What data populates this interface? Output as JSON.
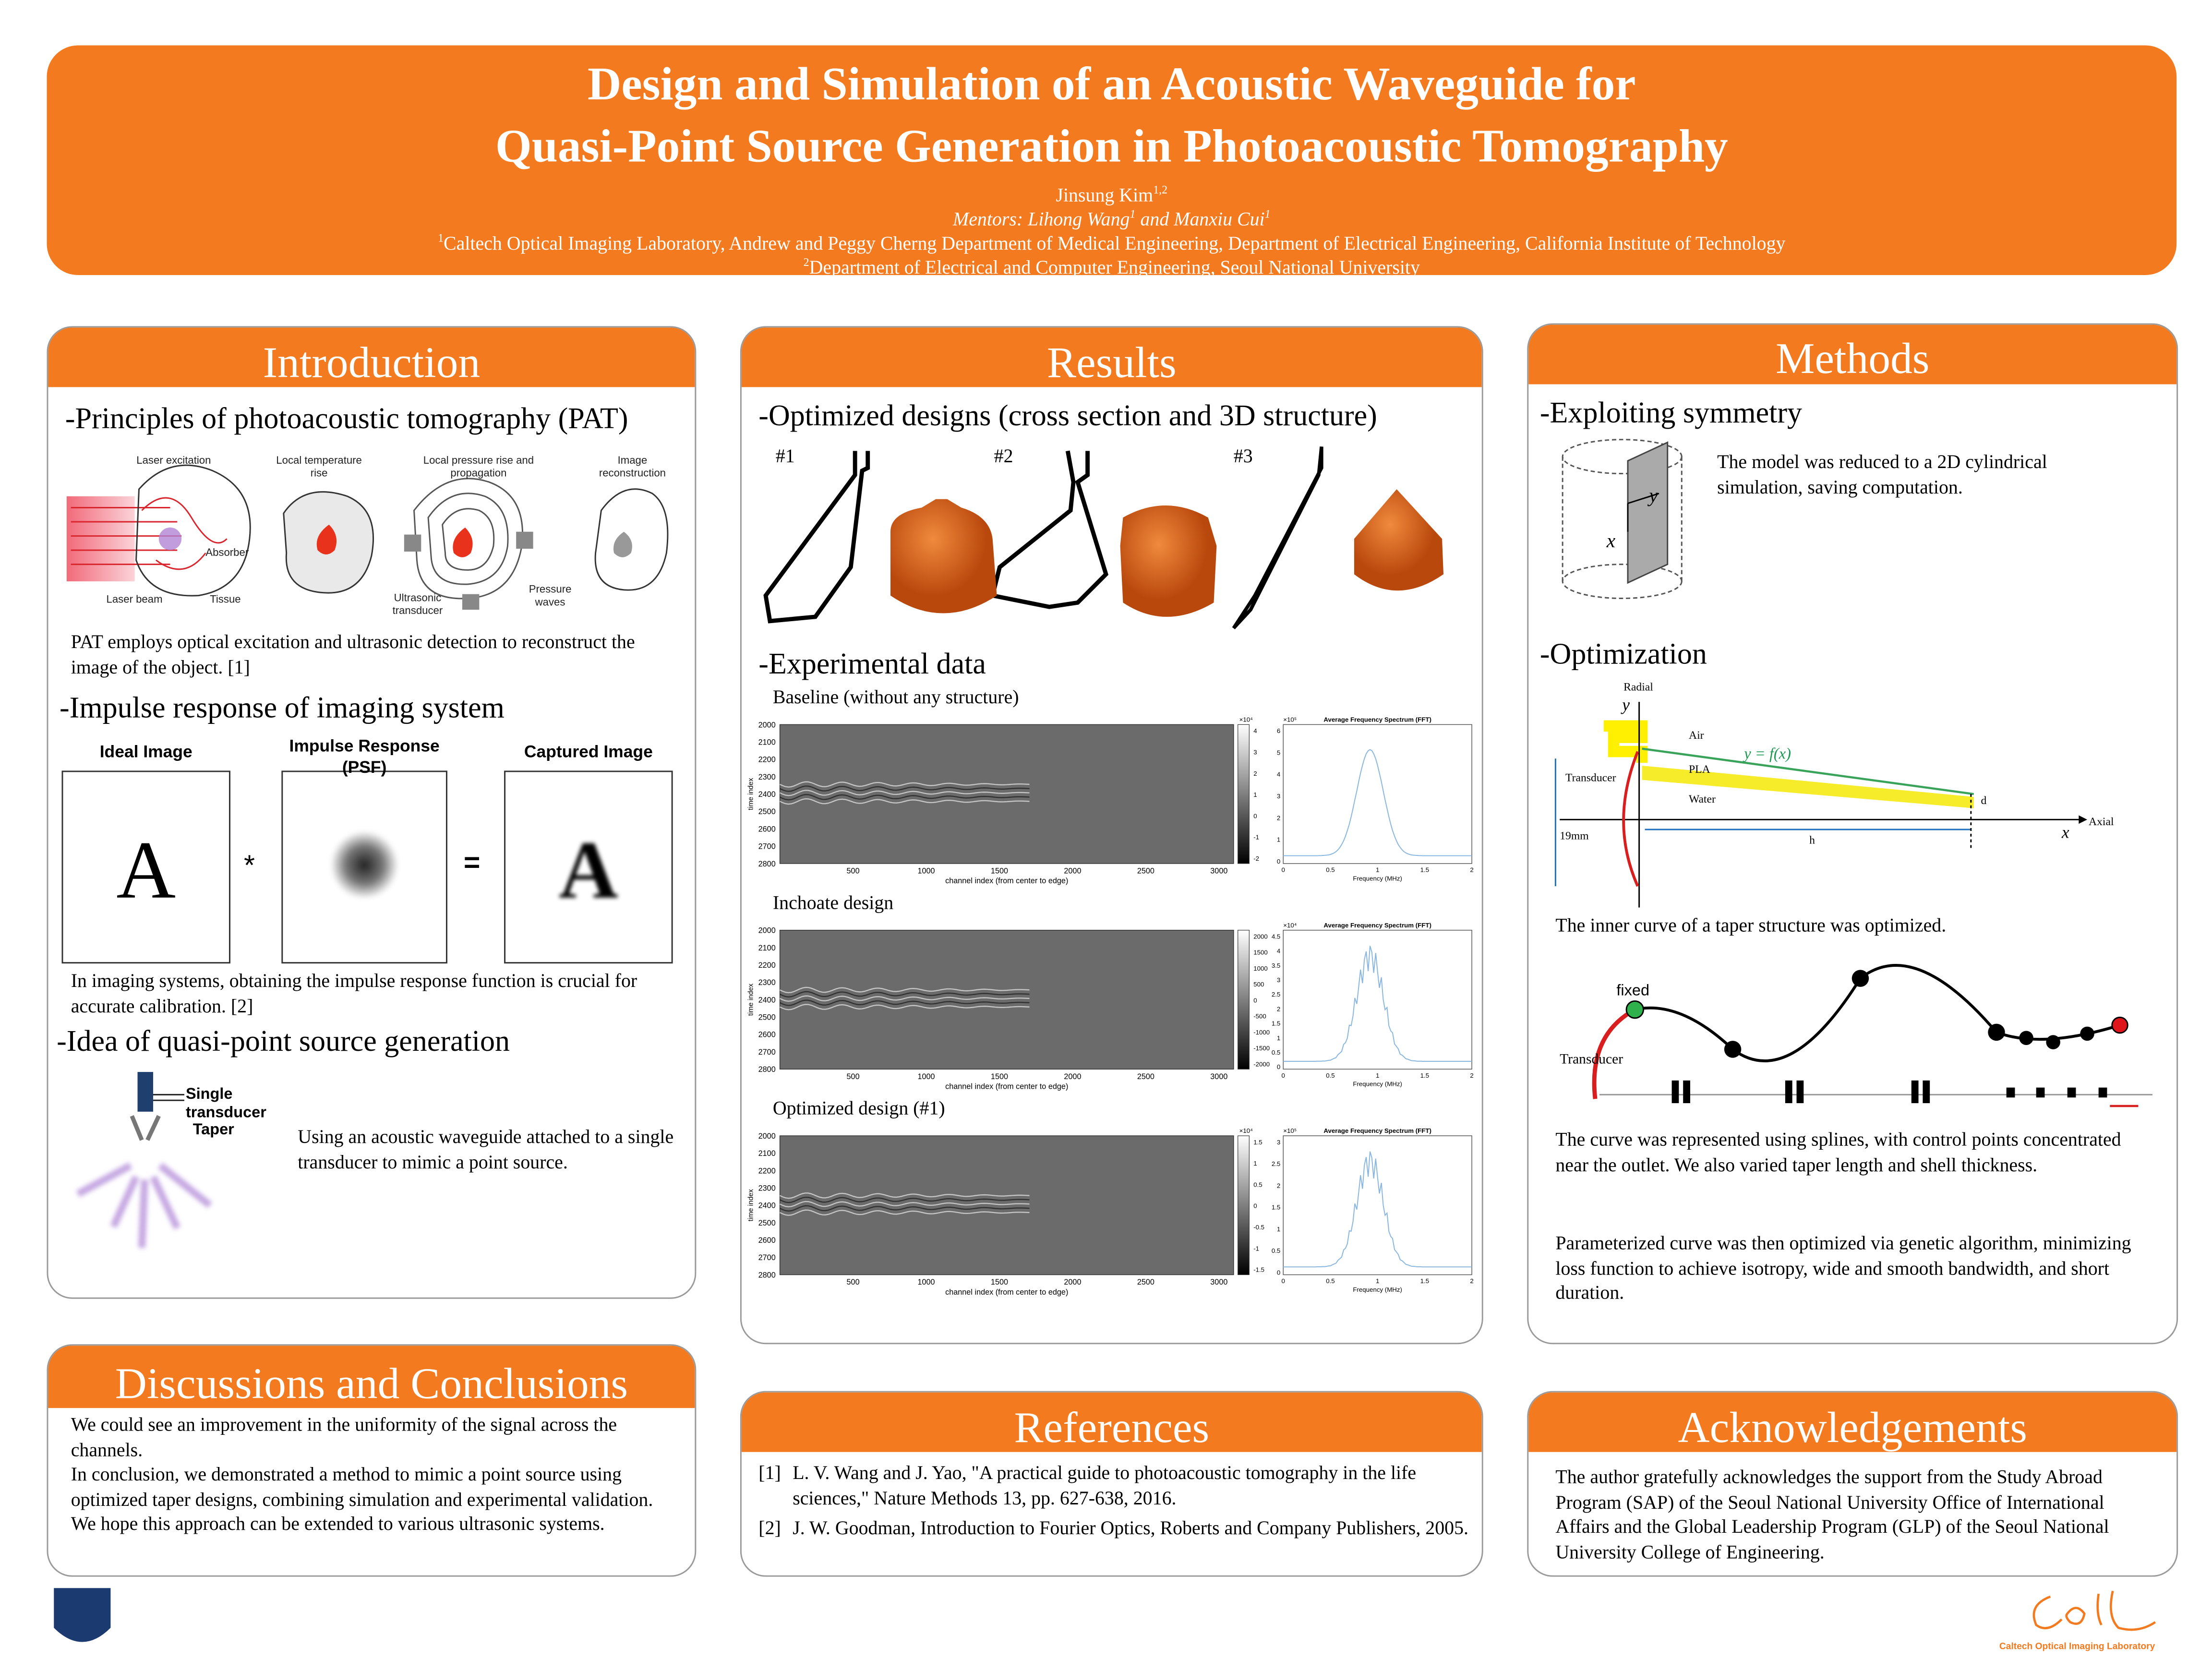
{
  "header": {
    "title_line1": "Design and Simulation of an Acoustic Waveguide for",
    "title_line2": "Quasi-Point Source Generation in Photoacoustic Tomography",
    "author": "Jinsung Kim",
    "author_sup": "1,2",
    "mentors_1": "Mentors: Lihong Wang",
    "mentors_1_sup": "1",
    "mentors_2": " and Manxiu Cui",
    "mentors_2_sup": "1",
    "affiliation_1_sup": "1",
    "affiliation_1": "Caltech Optical Imaging Laboratory, Andrew and Peggy Cherng Department of Medical Engineering, Department of Electrical Engineering, California Institute of Technology",
    "affiliation_2_sup": "2",
    "affiliation_2": "Department of Electrical and Computer Engineering, Seoul National University"
  },
  "introduction": {
    "heading": "Introduction",
    "pat": {
      "heading": "-Principles of photoacoustic tomography (PAT)",
      "figure": {
        "steps": [
          "Laser excitation",
          "Local temperature rise",
          "Local pressure rise and propagation",
          "Image reconstruction"
        ],
        "absorber": "Absorber",
        "laser_beam": "Laser beam",
        "tissue": "Tissue",
        "transducer": "Ultrasonic transducer",
        "pressure_waves": "Pressure waves"
      },
      "text": "PAT employs optical excitation and ultrasonic detection to reconstruct the image of the object. [1]"
    },
    "impulse": {
      "heading": "-Impulse response of imaging system",
      "figure": {
        "ideal": "Ideal Image",
        "psf": "Impulse Response (PSF)",
        "captured": "Captured Image",
        "glyph": "A",
        "convolve": "*",
        "equals": "="
      },
      "text": "In imaging systems, obtaining the impulse response function is crucial for accurate calibration. [2]"
    },
    "quasi_point": {
      "heading": "-Idea of quasi-point source generation",
      "figure": {
        "single_transducer": "Single transducer",
        "taper": "Taper"
      },
      "text": "Using an acoustic waveguide attached to a single transducer to mimic a point source."
    }
  },
  "results": {
    "heading": "Results",
    "designs": {
      "heading": "-Optimized designs (cross section and 3D structure)",
      "labels": [
        "#1",
        "#2",
        "#3"
      ]
    },
    "experimental": {
      "heading": "-Experimental data",
      "time_axis_label": "time index",
      "channel_axis_label": "channel index (from center to edge)",
      "time_ticks": [
        2000,
        2100,
        2200,
        2300,
        2400,
        2500,
        2600,
        2700,
        2800
      ],
      "channel_lim": [
        0,
        3100
      ],
      "channel_ticks": [
        500,
        1000,
        1500,
        2000,
        2500,
        3000
      ],
      "spectrum_title": "Average Frequency Spectrum (FFT)",
      "frequency_axis_label": "Frequency (MHz)",
      "frequency_ticks": [
        0,
        0.5,
        1,
        1.5,
        2
      ],
      "plots": [
        {
          "label": "Baseline (without any structure)",
          "colorbar_scale": "×10⁴",
          "colorbar_ticks": [
            4,
            3,
            2,
            1,
            0,
            -1,
            -2
          ],
          "spectrum_scale": "×10⁵",
          "spectrum_ticks": [
            0,
            1,
            2,
            3,
            4,
            5,
            6
          ]
        },
        {
          "label": "Inchoate design",
          "colorbar_ticks": [
            2000,
            1500,
            1000,
            500,
            0,
            -500,
            -1000,
            -1500,
            -2000
          ],
          "spectrum_scale": "×10⁴",
          "spectrum_ticks": [
            0,
            0.5,
            1,
            1.5,
            2,
            2.5,
            3,
            3.5,
            4,
            4.5
          ]
        },
        {
          "label": "Optimized design (#1)",
          "colorbar_scale": "×10⁴",
          "colorbar_ticks": [
            1.5,
            1,
            0.5,
            0,
            -0.5,
            -1,
            -1.5
          ],
          "spectrum_scale": "×10⁵",
          "spectrum_ticks": [
            0,
            0.5,
            1,
            1.5,
            2,
            2.5,
            3
          ]
        }
      ]
    }
  },
  "methods": {
    "heading": "Methods",
    "symmetry": {
      "heading": "-Exploiting symmetry",
      "axis_x": "x",
      "axis_y": "y",
      "text": "The model was reduced to a 2D cylindrical simulation, saving computation."
    },
    "optimization": {
      "heading": "-Optimization",
      "diagram": {
        "radial": "Radial",
        "y": "y",
        "air": "Air",
        "pla": "PLA",
        "water": "Water",
        "curve": "y = f(x)",
        "transducer": "Transducer",
        "diameter": "19mm",
        "length": "h",
        "thickness": "d",
        "axial": "Axial",
        "x": "x"
      },
      "text_1": "The inner curve of a taper structure was optimized.",
      "spline": {
        "fixed": "fixed",
        "transducer": "Transducer"
      },
      "text_2": "The curve was represented using splines, with control points concentrated near the outlet. We also varied taper length and shell thickness.",
      "text_3": "Parameterized curve was then optimized via genetic algorithm, minimizing loss function to achieve isotropy, wide and smooth bandwidth, and short duration."
    }
  },
  "discussions": {
    "heading": "Discussions and Conclusions",
    "paragraphs": [
      "We could see an improvement in the uniformity of the signal across the channels.",
      "In conclusion, we demonstrated a method to mimic a point source using optimized taper designs, combining simulation and experimental validation. We hope this approach can be extended to various ultrasonic systems."
    ]
  },
  "references": {
    "heading": "References",
    "items": [
      {
        "number": "[1]",
        "text": "L. V. Wang and J. Yao, \"A practical guide to photoacoustic tomography in the life sciences,\" Nature Methods 13, pp. 627-638, 2016."
      },
      {
        "number": "[2]",
        "text": "J. W. Goodman, Introduction to Fourier Optics, Roberts and Company Publishers, 2005."
      }
    ]
  },
  "acknowledgements": {
    "heading": "Acknowledgements",
    "text": "The author gratefully acknowledges the support from the Study Abroad Program (SAP) of the Seoul National University Office of International Affairs and the Global Leadership Program (GLP) of the Seoul National University College of Engineering."
  },
  "logos": {
    "caltech_lab": "Caltech Optical Imaging Laboratory"
  }
}
